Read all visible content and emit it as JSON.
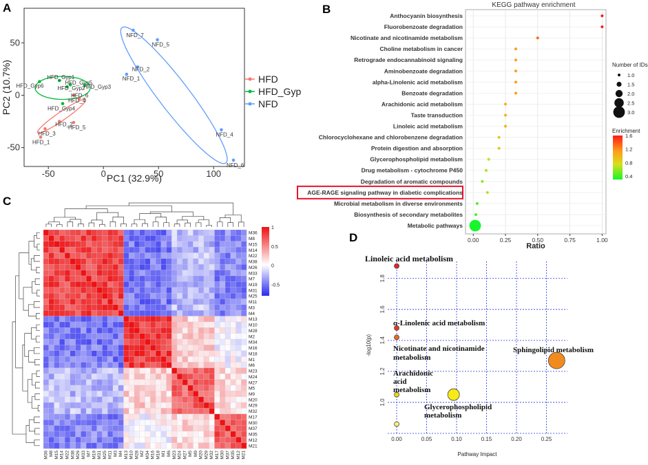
{
  "panels": {
    "a": "A",
    "b": "B",
    "c": "C",
    "d": "D"
  },
  "chart_data": [
    {
      "id": "pca",
      "type": "scatter",
      "xlabel": "PC1 (32.9%)",
      "ylabel": "PC2 (10.7%)",
      "xlim": [
        -72,
        128
      ],
      "ylim": [
        -68,
        83
      ],
      "xticks": [
        "-50",
        "0",
        "50",
        "100"
      ],
      "xtick_values": [
        -50,
        0,
        50,
        100
      ],
      "yticks": [
        "50",
        "0",
        "-50"
      ],
      "ytick_values": [
        50,
        0,
        -50
      ],
      "legend": [
        {
          "name": "HFD",
          "color": "#f8766d"
        },
        {
          "name": "HFD_Gyp",
          "color": "#00ba38"
        },
        {
          "name": "NFD",
          "color": "#619cff"
        }
      ],
      "points": [
        {
          "label": "HFD_1",
          "x": -57,
          "y": -40,
          "group": "HFD"
        },
        {
          "label": "HFD_3",
          "x": -53,
          "y": -32,
          "group": "HFD"
        },
        {
          "label": "HFD_2",
          "x": -40,
          "y": -25,
          "group": "HFD"
        },
        {
          "label": "HFD_5",
          "x": -27,
          "y": -26,
          "group": "HFD"
        },
        {
          "label": "HFD_4",
          "x": -22,
          "y": -3,
          "group": "HFD"
        },
        {
          "label": "HFD_6",
          "x": -27,
          "y": 0,
          "group": "HFD"
        },
        {
          "label": "HFD_Gyp6",
          "x": -58,
          "y": 13,
          "group": "HFD_Gyp"
        },
        {
          "label": "HFD_Gyp1",
          "x": -40,
          "y": 14,
          "group": "HFD_Gyp"
        },
        {
          "label": "HFD_Gyp2",
          "x": -33,
          "y": 8,
          "group": "HFD_Gyp"
        },
        {
          "label": "HFD_Gyp5",
          "x": -30,
          "y": 10,
          "group": "HFD_Gyp"
        },
        {
          "label": "HFD_Gyp3",
          "x": -17,
          "y": 10,
          "group": "HFD_Gyp"
        },
        {
          "label": "HFD_Gyp4",
          "x": -37,
          "y": -8,
          "group": "HFD_Gyp"
        },
        {
          "label": "NFD_7",
          "x": 27,
          "y": 62,
          "group": "NFD"
        },
        {
          "label": "NFD_5",
          "x": 49,
          "y": 53,
          "group": "NFD"
        },
        {
          "label": "NFD_2",
          "x": 31,
          "y": 27,
          "group": "NFD"
        },
        {
          "label": "NFD_1",
          "x": 21,
          "y": 20,
          "group": "NFD"
        },
        {
          "label": "NFD_4",
          "x": 107,
          "y": -33,
          "group": "NFD"
        },
        {
          "label": "NFD_6",
          "x": 118,
          "y": -62,
          "group": "NFD"
        }
      ]
    },
    {
      "id": "kegg",
      "type": "scatter",
      "title": "KEGG pathway enrichment",
      "xlabel": "Ratio",
      "xlim": [
        -0.06,
        1.03
      ],
      "xticks": [
        "0.00",
        "0.25",
        "0.50",
        "0.75",
        "1.00"
      ],
      "xtick_values": [
        0,
        0.25,
        0.5,
        0.75,
        1.0
      ],
      "size_legend_title": "Number of IDs",
      "size_legend": [
        "1.0",
        "1.5",
        "2.0",
        "2.5",
        "3.0"
      ],
      "color_legend_title": "Enrichment",
      "color_legend_ticks": [
        "1.6",
        "1.2",
        "0.8",
        "0.4"
      ],
      "highlighted": "AGE-RAGE signaling pathway in diabetic complications",
      "highlight_color": "#e8112d",
      "pathways": [
        {
          "name": "Anthocyanin biosynthesis",
          "ratio": 1.0,
          "n": 1,
          "enrichment": 1.6
        },
        {
          "name": "Fluorobenzoate degradation",
          "ratio": 1.0,
          "n": 1,
          "enrichment": 1.6
        },
        {
          "name": "Nicotinate and nicotinamide metabolism",
          "ratio": 0.5,
          "n": 1,
          "enrichment": 1.3
        },
        {
          "name": "Choline metabolism in cancer",
          "ratio": 0.33,
          "n": 1,
          "enrichment": 1.13
        },
        {
          "name": "Retrograde endocannabinoid signaling",
          "ratio": 0.33,
          "n": 1,
          "enrichment": 1.13
        },
        {
          "name": "Aminobenzoate degradation",
          "ratio": 0.33,
          "n": 1,
          "enrichment": 1.13
        },
        {
          "name": "alpha-Linolenic acid metabolism",
          "ratio": 0.33,
          "n": 1,
          "enrichment": 1.13
        },
        {
          "name": "Benzoate degradation",
          "ratio": 0.33,
          "n": 1,
          "enrichment": 1.13
        },
        {
          "name": "Arachidonic acid metabolism",
          "ratio": 0.25,
          "n": 1,
          "enrichment": 1.0
        },
        {
          "name": "Taste transduction",
          "ratio": 0.25,
          "n": 1,
          "enrichment": 1.0
        },
        {
          "name": "Linoleic acid metabolism",
          "ratio": 0.25,
          "n": 1,
          "enrichment": 1.0
        },
        {
          "name": "Chlorocyclohexane and chlorobenzene degradation",
          "ratio": 0.2,
          "n": 1,
          "enrichment": 0.9
        },
        {
          "name": "Protein digestion and absorption",
          "ratio": 0.2,
          "n": 1,
          "enrichment": 0.9
        },
        {
          "name": "Glycerophospholipid metabolism",
          "ratio": 0.12,
          "n": 1,
          "enrichment": 0.7
        },
        {
          "name": "Drug metabolism - cytochrome P450",
          "ratio": 0.1,
          "n": 1,
          "enrichment": 0.65
        },
        {
          "name": "Degradation of aromatic compounds",
          "ratio": 0.07,
          "n": 1,
          "enrichment": 0.58
        },
        {
          "name": "AGE-RAGE signaling pathway in diabetic complications",
          "ratio": 0.11,
          "n": 1,
          "enrichment": 0.66
        },
        {
          "name": "Microbial metabolism in diverse environments",
          "ratio": 0.03,
          "n": 1,
          "enrichment": 0.45
        },
        {
          "name": "Biosynthesis of secondary metabolites",
          "ratio": 0.02,
          "n": 1,
          "enrichment": 0.42
        },
        {
          "name": "Metabolic pathways",
          "ratio": 0.015,
          "n": 3,
          "enrichment": 0.3
        }
      ]
    },
    {
      "id": "heatmap",
      "type": "heatmap",
      "row_labels": [
        "M36",
        "M8",
        "M15",
        "M14",
        "M22",
        "M38",
        "M26",
        "M33",
        "M7",
        "M19",
        "M31",
        "M25",
        "M11",
        "M3",
        "M4",
        "M13",
        "M10",
        "M28",
        "M2",
        "M34",
        "M16",
        "M18",
        "M1",
        "M6",
        "M23",
        "M24",
        "M27",
        "M5",
        "M9",
        "M20",
        "M29",
        "M32",
        "M17",
        "M30",
        "M37",
        "M35",
        "M12",
        "M21"
      ],
      "col_labels": [
        "M36",
        "M8",
        "M15",
        "M14",
        "M22",
        "M38",
        "M26",
        "M33",
        "M7",
        "M19",
        "M31",
        "M25",
        "M11",
        "M3",
        "M4",
        "M13",
        "M10",
        "M28",
        "M2",
        "M34",
        "M16",
        "M18",
        "M1",
        "M6",
        "M23",
        "M24",
        "M27",
        "M5",
        "M9",
        "M20",
        "M29",
        "M32",
        "M17",
        "M30",
        "M37",
        "M35",
        "M12",
        "M21"
      ],
      "clusters": [
        {
          "start": 0,
          "end": 15
        },
        {
          "start": 15,
          "end": 24
        },
        {
          "start": 24,
          "end": 32
        },
        {
          "start": 32,
          "end": 38
        }
      ],
      "scale_ticks": [
        "1",
        "0.5",
        "0",
        "-0.5"
      ],
      "scale_values": [
        1,
        0.5,
        0,
        -0.5
      ],
      "scale_range": [
        -0.8,
        1
      ],
      "colors": {
        "low": "#2a2af0",
        "mid": "#ffffff",
        "high": "#ee1111"
      }
    },
    {
      "id": "pathway-impact",
      "type": "scatter",
      "xlabel": "Pathway Impact",
      "ylabel": "-log10(p)",
      "xlim": [
        -0.015,
        0.285
      ],
      "ylim": [
        0.8,
        1.91
      ],
      "xticks": [
        "0.00",
        "0.05",
        "0.10",
        "0.15",
        "0.20",
        "0.25"
      ],
      "xtick_values": [
        0,
        0.05,
        0.1,
        0.15,
        0.2,
        0.25
      ],
      "yticks": [
        "1.8",
        "1.6",
        "1.4",
        "1.2",
        "1.0"
      ],
      "ytick_values": [
        1.8,
        1.6,
        1.4,
        1.2,
        1.0
      ],
      "points": [
        {
          "x": 0.0,
          "y": 1.88,
          "size": 1,
          "color": "#e8251d"
        },
        {
          "x": 0.0,
          "y": 1.48,
          "size": 1,
          "color": "#e8391d"
        },
        {
          "x": 0.0,
          "y": 1.42,
          "size": 1,
          "color": "#ef6a1e"
        },
        {
          "x": 0.267,
          "y": 1.27,
          "size": 5,
          "color": "#f28b1d"
        },
        {
          "x": 0.095,
          "y": 1.05,
          "size": 3,
          "color": "#f7ea16"
        },
        {
          "x": 0.0,
          "y": 1.05,
          "size": 1,
          "color": "#f1d51a"
        },
        {
          "x": 0.0,
          "y": 0.86,
          "size": 1,
          "color": "#f5f07a"
        }
      ],
      "annotations": [
        {
          "text": "Linoleic acid metabolism"
        },
        {
          "text": "α-Linolenic acid metabolism"
        },
        {
          "text": "Nicotinate and nicotinamide"
        },
        {
          "text": "metabolism"
        },
        {
          "text": "Sphingolipid metabolism"
        },
        {
          "text": "Arachidonic"
        },
        {
          "text": "acid"
        },
        {
          "text": "metabolism"
        },
        {
          "text": "Glycerophospholipid"
        },
        {
          "text": "metabolism"
        }
      ]
    }
  ]
}
